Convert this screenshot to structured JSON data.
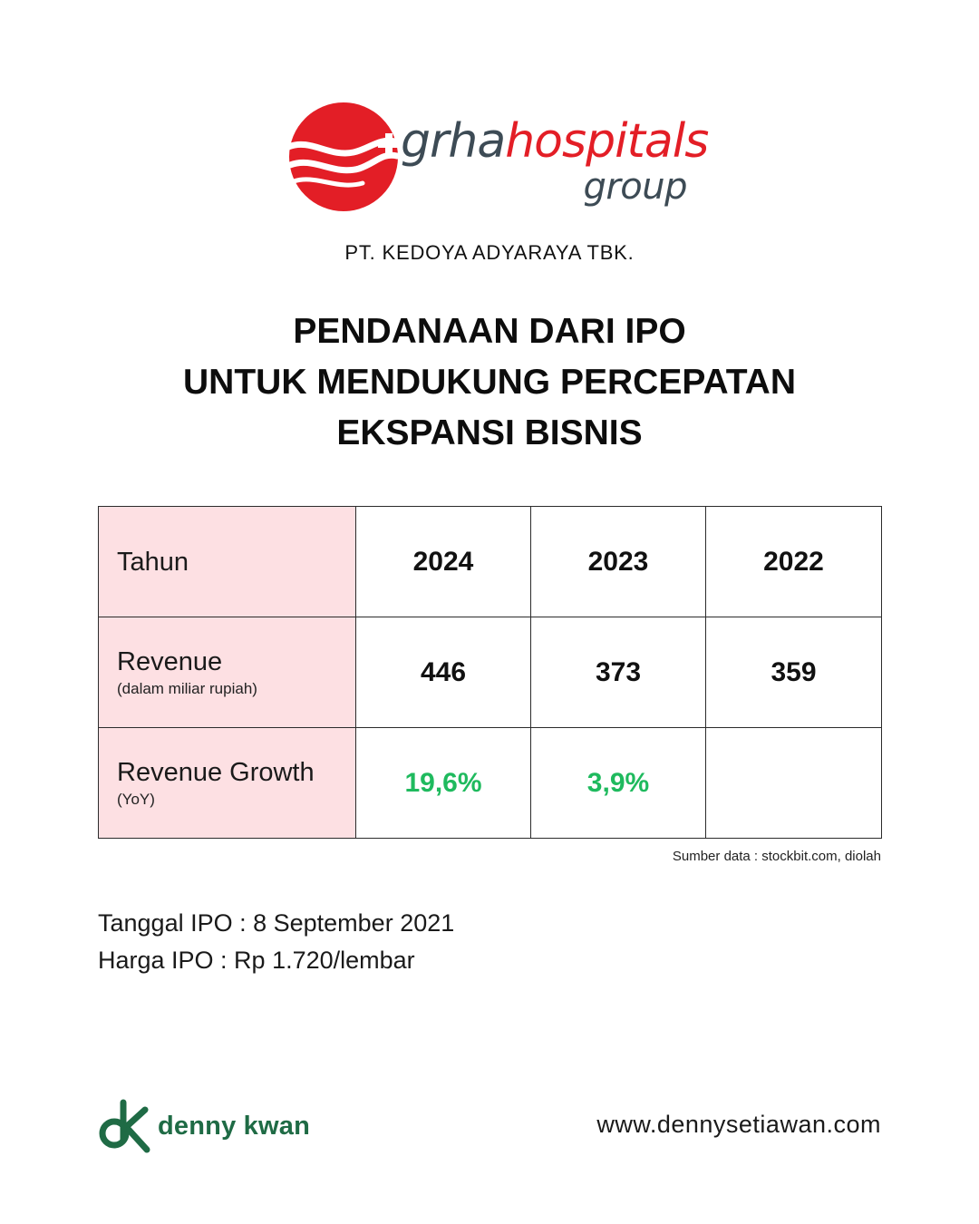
{
  "logo": {
    "word_part1": "grha",
    "word_part2": "hospitals",
    "word_sub": "group",
    "colors": {
      "red": "#e31e26",
      "gray": "#3d4b55"
    }
  },
  "company": "PT. KEDOYA ADYARAYA TBK.",
  "headline": {
    "line1": "PENDANAAN DARI IPO",
    "line2": "UNTUK MENDUKUNG PERCEPATAN",
    "line3": "EKSPANSI BISNIS"
  },
  "table": {
    "header": {
      "label": "Tahun",
      "years": [
        "2024",
        "2023",
        "2022"
      ]
    },
    "revenue": {
      "label": "Revenue",
      "sublabel": "(dalam miliar rupiah)",
      "values": [
        "446",
        "373",
        "359"
      ]
    },
    "growth": {
      "label": "Revenue Growth",
      "sublabel": "(YoY)",
      "values": [
        "19,6%",
        "3,9%",
        ""
      ]
    },
    "label_bg_color": "#fde0e3",
    "growth_color": "#1fba5e"
  },
  "source": "Sumber data : stockbit.com, diolah",
  "ipo": {
    "date": "Tanggal IPO : 8 September 2021",
    "price": "Harga IPO : Rp 1.720/lembar"
  },
  "footer": {
    "brand": "denny kwan",
    "brand_color": "#1f6b45",
    "website": "www.dennysetiawan.com"
  }
}
